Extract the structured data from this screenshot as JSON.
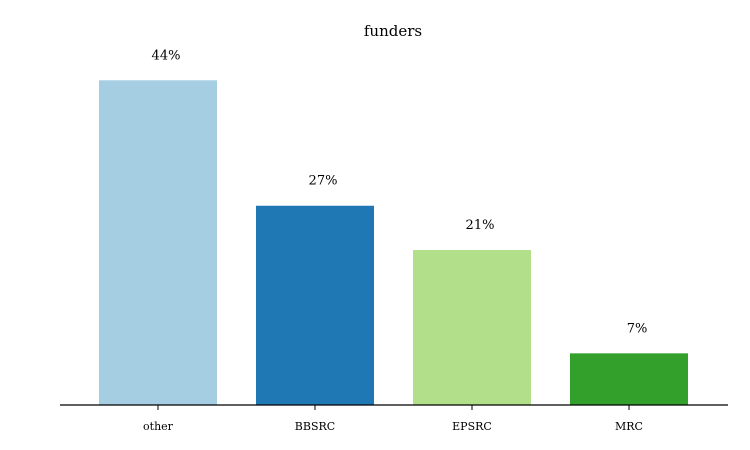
{
  "chart_data": {
    "type": "bar",
    "title": "funders",
    "xlabel": "",
    "ylabel": "",
    "categories": [
      "other",
      "BBSRC",
      "EPSRC",
      "MRC"
    ],
    "values": [
      44,
      27,
      21,
      7
    ],
    "value_labels": [
      "44%",
      "27%",
      "21%",
      "7%"
    ],
    "unit": "%",
    "ylim": [
      0,
      50
    ],
    "colors": [
      "#a6cee3",
      "#1f78b4",
      "#b2df8a",
      "#33a02c"
    ],
    "grid": false,
    "legend": "none",
    "y_axis_visible": false
  }
}
